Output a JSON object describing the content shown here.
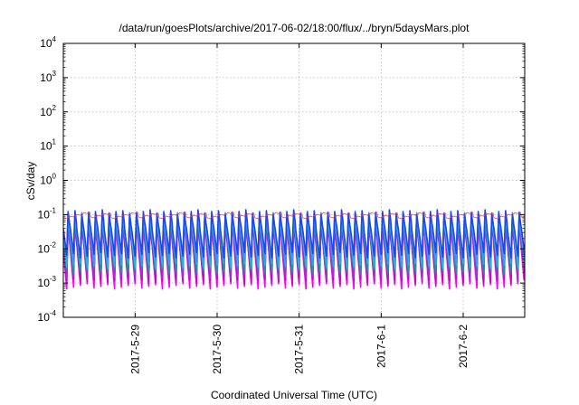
{
  "chart_data": {
    "type": "line",
    "title": "/data/run/goesPlots/archive/2017-06-02/18:00/flux/../bryn/5daysMars.plot",
    "xlabel": "Coordinated Universal Time (UTC)",
    "ylabel": "cSv/day",
    "yscale": "log",
    "ylim": [
      0.0001,
      10000
    ],
    "y_ticks": [
      {
        "base": "10",
        "exp": "-4",
        "value": 0.0001
      },
      {
        "base": "10",
        "exp": "-3",
        "value": 0.001
      },
      {
        "base": "10",
        "exp": "-2",
        "value": 0.01
      },
      {
        "base": "10",
        "exp": "-1",
        "value": 0.1
      },
      {
        "base": "10",
        "exp": "0",
        "value": 1
      },
      {
        "base": "10",
        "exp": "1",
        "value": 10
      },
      {
        "base": "10",
        "exp": "2",
        "value": 100
      },
      {
        "base": "10",
        "exp": "3",
        "value": 1000
      },
      {
        "base": "10",
        "exp": "4",
        "value": 10000
      }
    ],
    "xlim": [
      "2017-05-28 03:00",
      "2017-06-02 18:00"
    ],
    "x_ticks": [
      {
        "label": "2017-5-29",
        "value": "2017-05-29"
      },
      {
        "label": "2017-5-30",
        "value": "2017-05-30"
      },
      {
        "label": "2017-5-31",
        "value": "2017-05-31"
      },
      {
        "label": "2017-6-1",
        "value": "2017-06-01"
      },
      {
        "label": "2017-6-2",
        "value": "2017-06-02"
      }
    ],
    "grid": true,
    "pattern": {
      "cycles_per_day": 12,
      "start_phase": 0.5,
      "peak": 0.13,
      "trough": 0.0008
    },
    "series": [
      {
        "color": "#ff00ff",
        "peak": 0.06,
        "trough": 0.0008
      },
      {
        "color": "#cc00cc",
        "peak": 0.075,
        "trough": 0.0011
      },
      {
        "color": "#9933cc",
        "peak": 0.085,
        "trough": 0.0016
      },
      {
        "color": "#00aa88",
        "peak": 0.095,
        "trough": 0.0023
      },
      {
        "color": "#00cccc",
        "peak": 0.105,
        "trough": 0.0032
      },
      {
        "color": "#3399ff",
        "peak": 0.115,
        "trough": 0.0045
      },
      {
        "color": "#2244ee",
        "peak": 0.125,
        "trough": 0.0065
      },
      {
        "color": "#ff3333",
        "peak": 0.1,
        "trough": 0.09
      }
    ]
  }
}
